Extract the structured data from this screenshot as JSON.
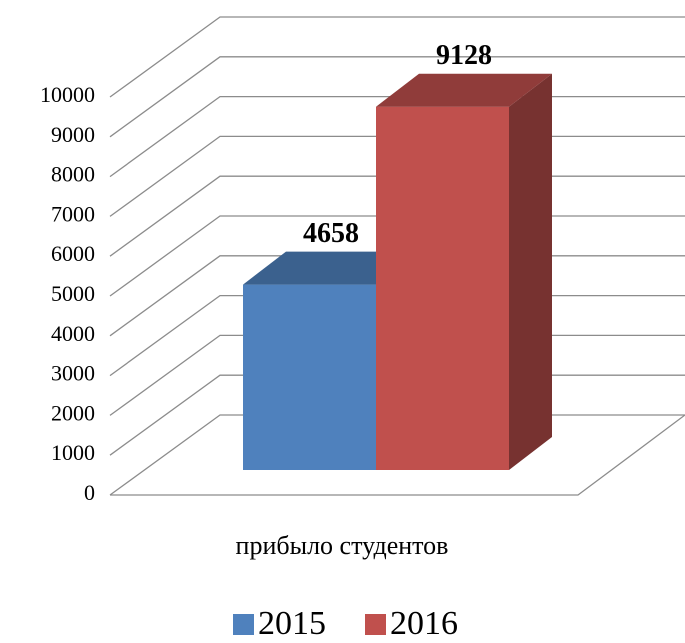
{
  "chart_data": {
    "type": "bar3d",
    "categories": [
      "прибыло студентов"
    ],
    "series": [
      {
        "name": "2015",
        "color": "#4f81bd",
        "values": [
          4658
        ]
      },
      {
        "name": "2016",
        "color": "#c0504d",
        "values": [
          9128
        ]
      }
    ],
    "ylim": [
      0,
      10000
    ],
    "yticks": [
      0,
      1000,
      2000,
      3000,
      4000,
      5000,
      6000,
      7000,
      8000,
      9000,
      10000
    ],
    "grid": true,
    "legend": "bottom"
  }
}
